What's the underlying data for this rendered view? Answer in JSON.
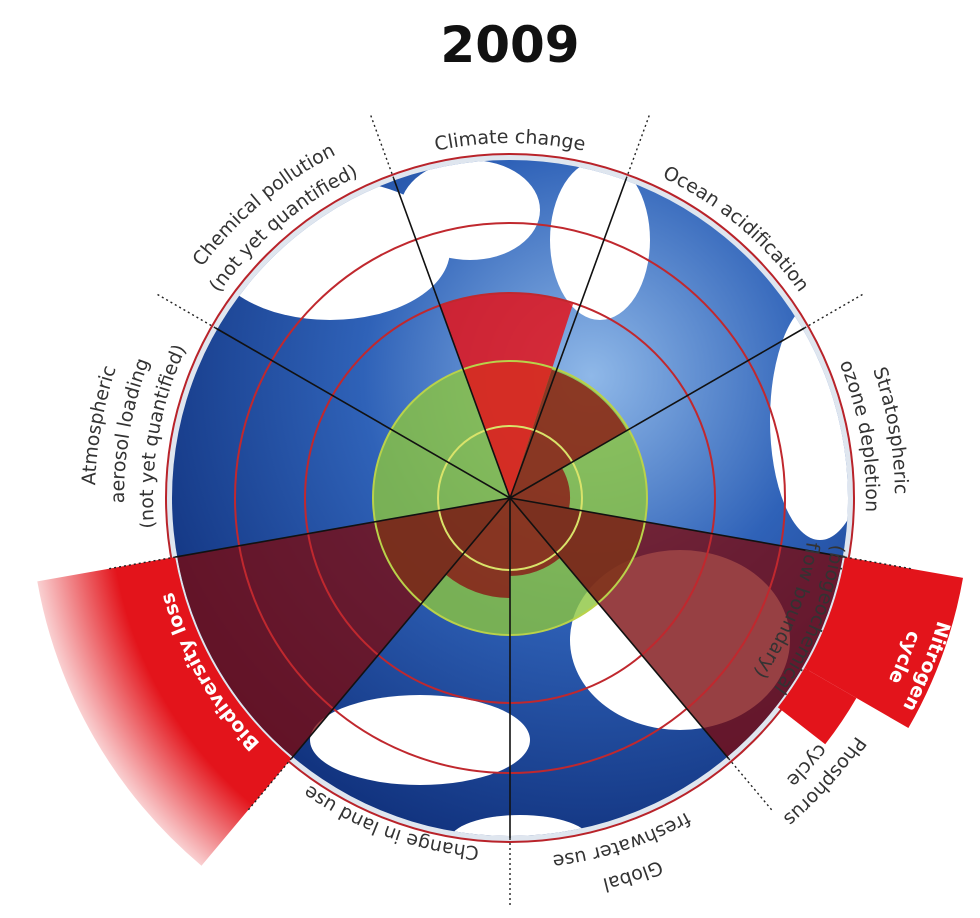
{
  "title": "2009",
  "boundaries": [
    {
      "lines": [
        "Climate change"
      ]
    },
    {
      "lines": [
        "Ocean acidification"
      ]
    },
    {
      "lines": [
        "Stratospheric",
        "ozone depletion"
      ]
    },
    {
      "lines": [
        "Nitrogen",
        "cycle",
        "(biogeochemical",
        "flow boundary)"
      ]
    },
    {
      "lines": [
        "Phosphorus",
        "cycle"
      ]
    },
    {
      "lines": [
        "Global",
        "freshwater use"
      ]
    },
    {
      "lines": [
        "Change in land use"
      ]
    },
    {
      "lines": [
        "Biodiversity loss"
      ]
    },
    {
      "lines": [
        "Atmospheric",
        "aerosol loading",
        "(not yet quantified)"
      ]
    },
    {
      "lines": [
        "Chemical pollution",
        "(not yet quantified)"
      ]
    }
  ]
}
